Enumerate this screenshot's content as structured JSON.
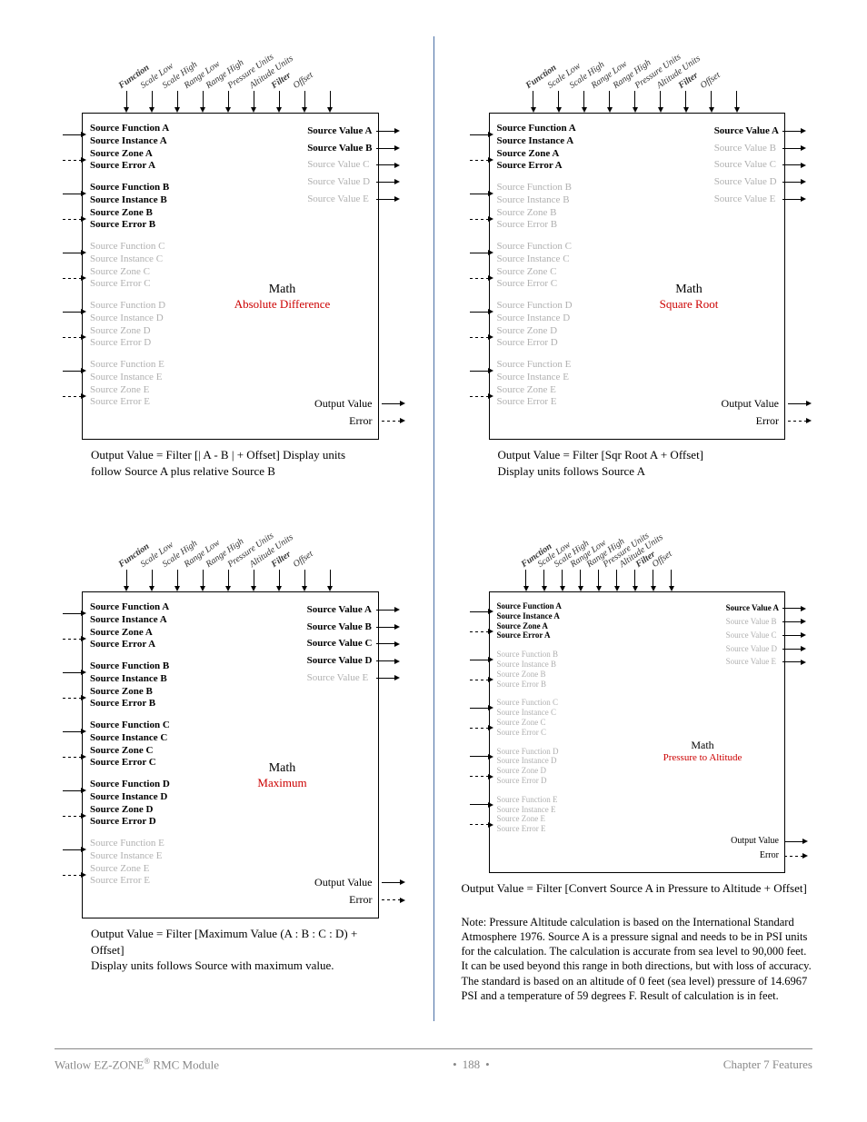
{
  "top_labels": [
    "Function",
    "Scale Low",
    "Scale High",
    "Range Low",
    "Range High",
    "Pressure Units",
    "Altitude Units",
    "Filter",
    "Offset"
  ],
  "top_labels_small": [
    "Function",
    "Scale Low",
    "Scale High",
    "Range Low",
    "Range High",
    "Pressure Units",
    "Altitude Units",
    "Filter",
    "Offset"
  ],
  "bold_label_indices": [
    0,
    7
  ],
  "source_labels": {
    "function": "Source Function",
    "instance": "Source Instance",
    "zone": "Source Zone",
    "error": "Source Error"
  },
  "source_letters": [
    "A",
    "B",
    "C",
    "D",
    "E"
  ],
  "value_label": "Source Value",
  "output_label": "Output Value",
  "error_label": "Error",
  "math_label": "Math",
  "diagrams": {
    "abs_diff": {
      "op": "Absolute Difference",
      "active_sources": [
        "A",
        "B"
      ],
      "active_values": [
        "A",
        "B"
      ],
      "arrow_values": [
        "A",
        "B",
        "C",
        "D",
        "E"
      ],
      "caption": "Output Value = Filter [| A - B | + Offset] Display units follow Source A plus relative Source B"
    },
    "sqrt": {
      "op": "Square Root",
      "active_sources": [
        "A"
      ],
      "active_values": [
        "A"
      ],
      "arrow_values": [
        "A",
        "B",
        "C",
        "D",
        "E"
      ],
      "caption": "Output Value = Filter [Sqr Root A + Offset]",
      "caption2": "Display units follows Source A"
    },
    "maximum": {
      "op": "Maximum",
      "active_sources": [
        "A",
        "B",
        "C",
        "D"
      ],
      "active_values": [
        "A",
        "B",
        "C",
        "D"
      ],
      "arrow_values": [
        "A",
        "B",
        "C",
        "D",
        "E"
      ],
      "caption": "Output Value = Filter [Maximum Value (A : B : C : D) + Offset]",
      "caption2": "Display units follows Source with maximum value."
    },
    "p2a": {
      "op": "Pressure to Altitude",
      "active_sources": [
        "A"
      ],
      "active_values": [
        "A"
      ],
      "arrow_values": [
        "A",
        "B",
        "C",
        "D",
        "E"
      ],
      "caption": "Output Value = Filter [Convert Source A in Pressure to Altitude + Offset]",
      "note": "Note: Pressure Altitude calculation is based on the International Standard Atmosphere 1976. Source A is a pressure signal and needs to be in PSI units for the calculation. The calculation is accurate from sea level to 90,000 feet. It can be used beyond this range in both directions, but with loss of accuracy. The standard is based on an altitude of 0 feet (sea level) pressure of 14.6967 PSI and a temperature of 59 degrees F. Result of calculation is in feet."
    }
  },
  "footer": {
    "left_pre": "Watlow EZ-ZONE",
    "left_post": " RMC Module",
    "page": "188",
    "right": "Chapter 7 Features"
  },
  "colors": {
    "op": "#cc0000",
    "faded": "#b0b0b0",
    "divider": "#4a6fa5"
  }
}
